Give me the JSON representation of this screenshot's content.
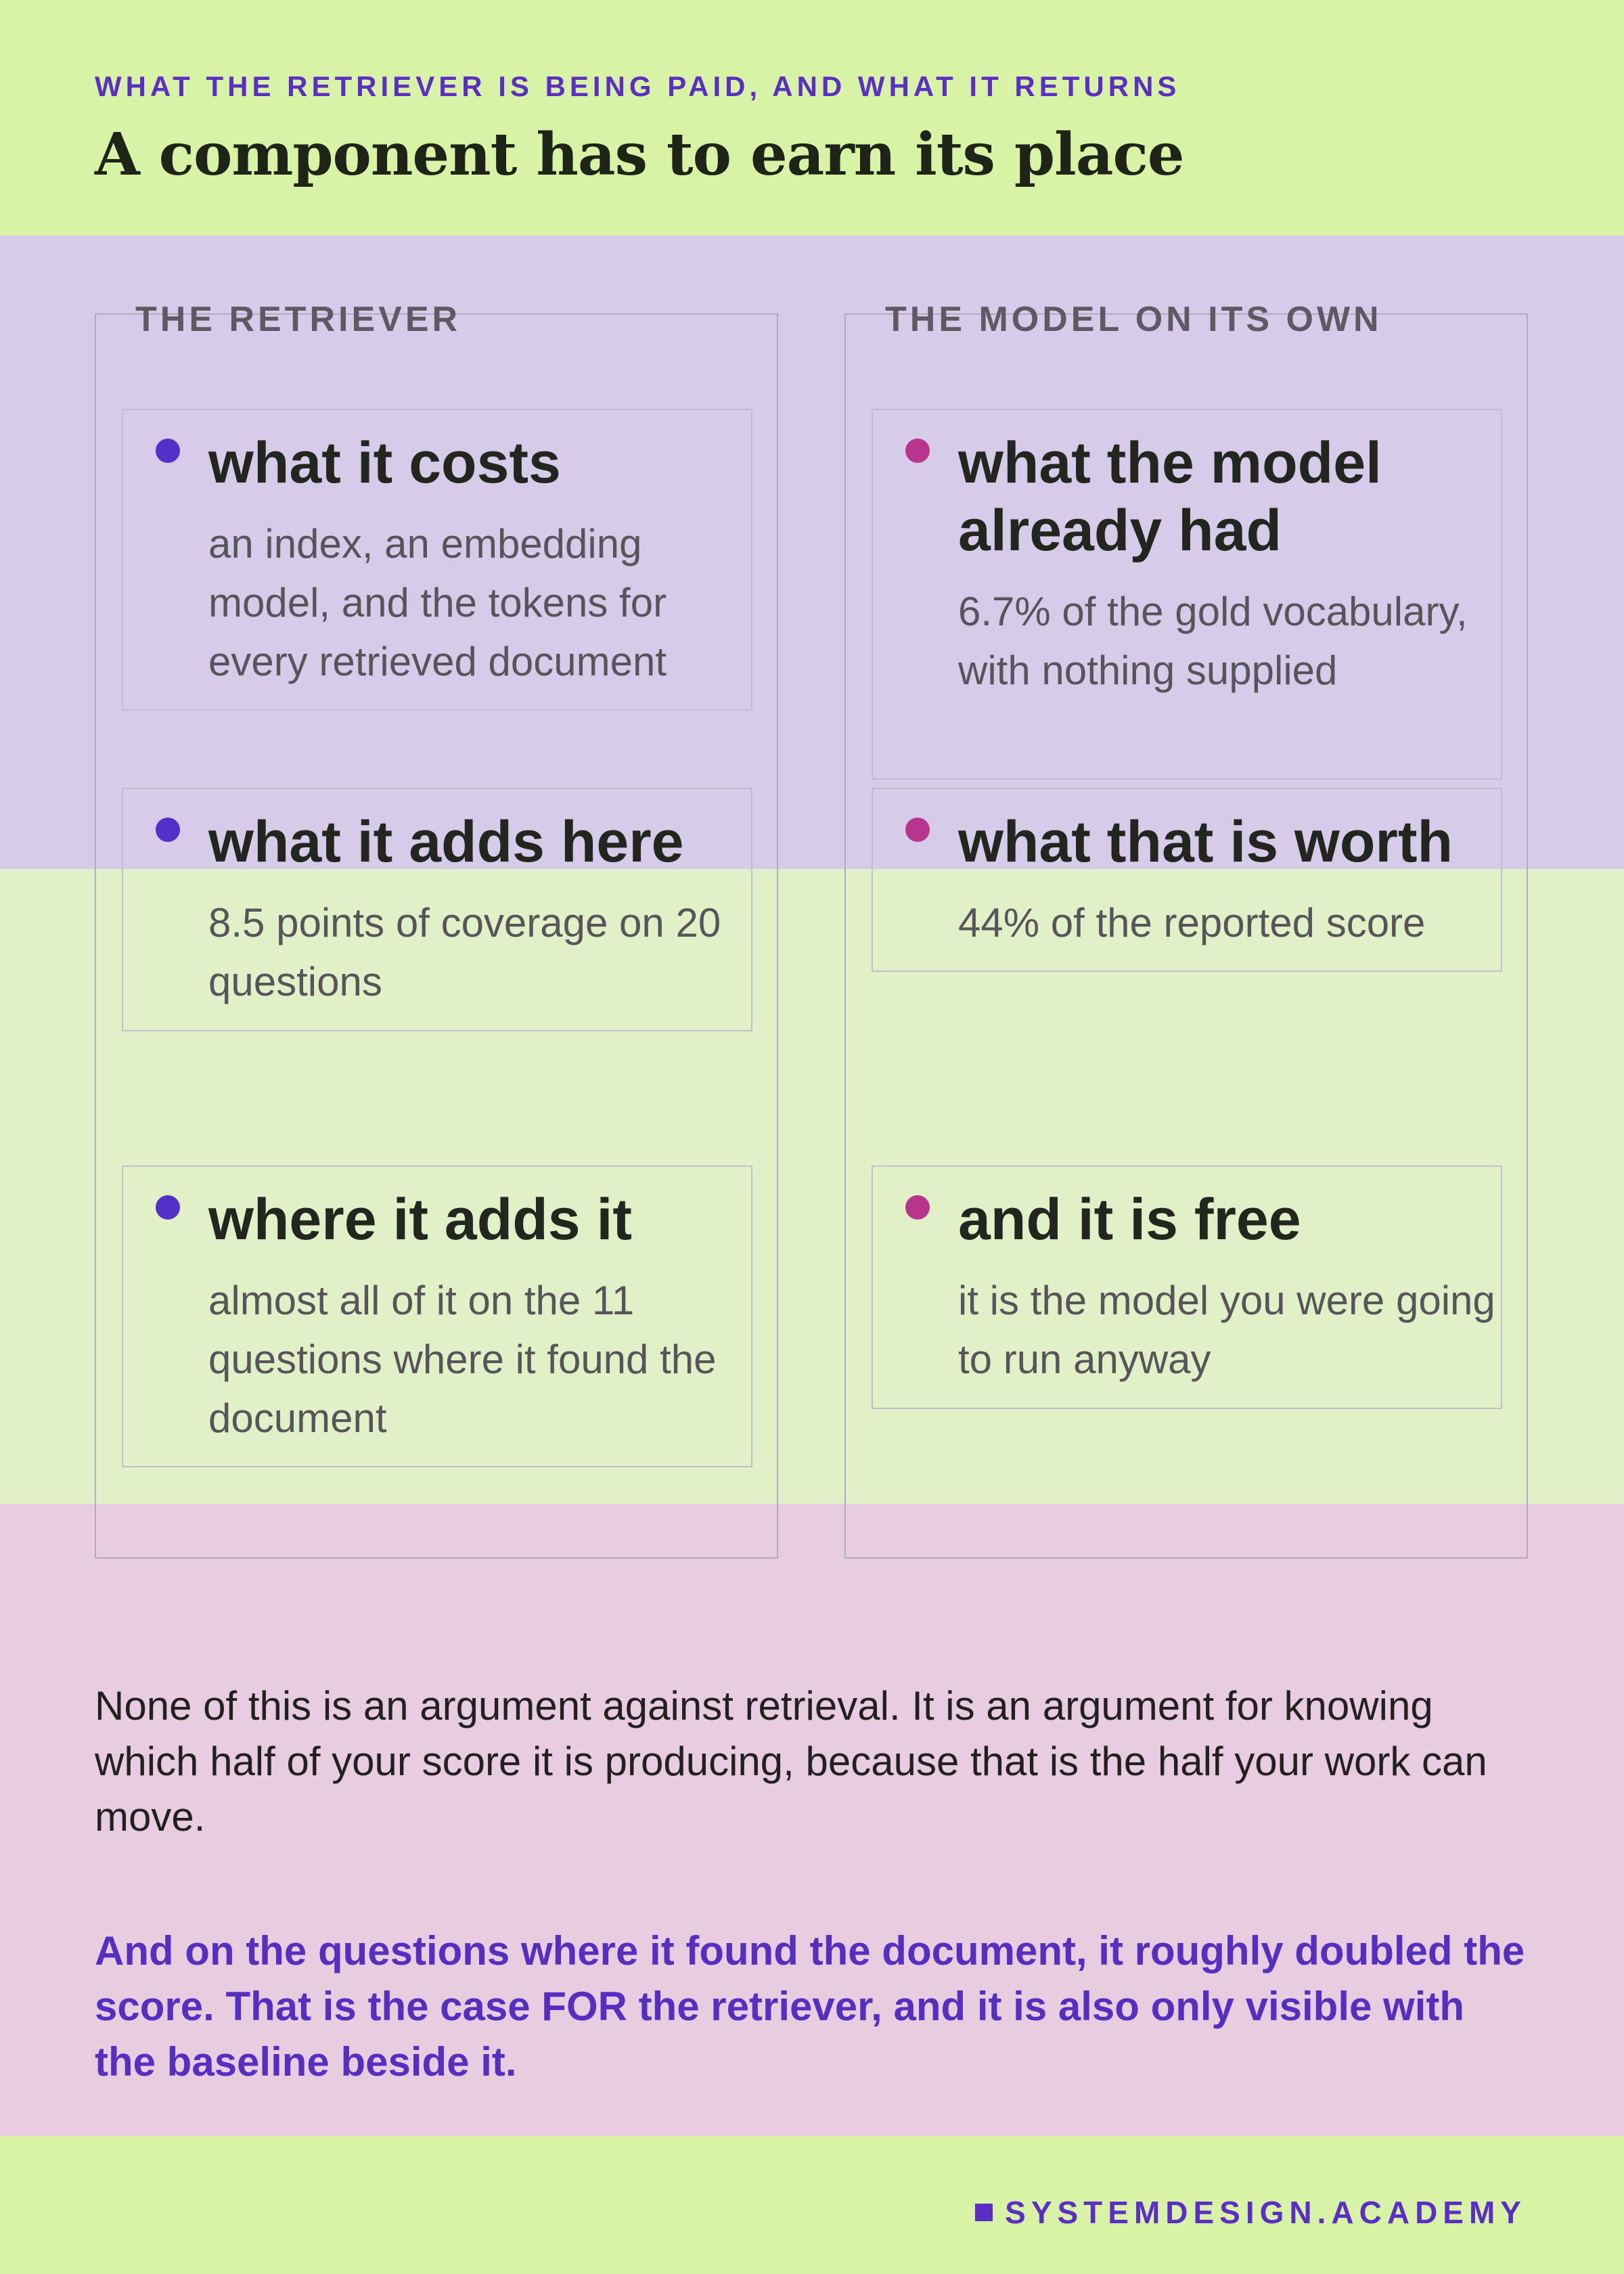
{
  "header": {
    "eyebrow": "WHAT THE RETRIEVER IS BEING PAID, AND WHAT IT RETURNS",
    "title": "A component has to earn its place"
  },
  "colors": {
    "accent": "#5b2fc4",
    "retriever_dot": "#5530c8",
    "model_dot": "#b8358d",
    "band_green": "#d9f3a6",
    "band_purple": "#d7cbea",
    "band_pink": "#e8cde0"
  },
  "columns": {
    "left": {
      "heading": "THE RETRIEVER",
      "cards": [
        {
          "title": "what it costs",
          "body": "an index, an embedding model, and the tokens for every retrieved document"
        },
        {
          "title": "what it adds here",
          "body": "8.5 points of coverage on 20 questions"
        },
        {
          "title": "where it adds it",
          "body": "almost all of it on the 11 questions where it found the document"
        }
      ]
    },
    "right": {
      "heading": "THE MODEL ON ITS OWN",
      "cards": [
        {
          "title": "what the model already had",
          "body": "6.7% of the gold vocabulary, with nothing supplied"
        },
        {
          "title": "what that is worth",
          "body": "44% of the reported score"
        },
        {
          "title": "and it is free",
          "body": "it is the model you were going to run anyway"
        }
      ]
    }
  },
  "closing": {
    "text": "None of this is an argument against retrieval. It is an argument for knowing which half of your score it is producing, because that is the half your work can move.",
    "highlight": "And on the questions where it found the document, it roughly doubled the score. That is the case FOR the retriever, and it is also only visible with the baseline beside it."
  },
  "footer": {
    "brand": "SYSTEMDESIGN.ACADEMY"
  }
}
